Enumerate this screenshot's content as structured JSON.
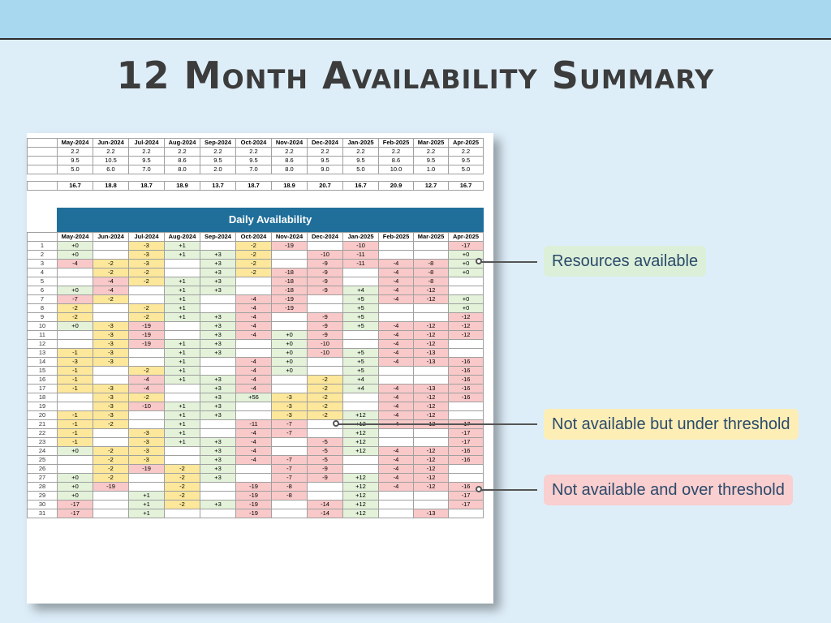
{
  "page": {
    "title": "12 Month Availability  Summary"
  },
  "months": [
    "May-2024",
    "Jun-2024",
    "Jul-2024",
    "Aug-2024",
    "Sep-2024",
    "Oct-2024",
    "Nov-2024",
    "Dec-2024",
    "Jan-2025",
    "Feb-2025",
    "Mar-2025",
    "Apr-2025"
  ],
  "summary_rows": [
    [
      "2.2",
      "2.2",
      "2.2",
      "2.2",
      "2.2",
      "2.2",
      "2.2",
      "2.2",
      "2.2",
      "2.2",
      "2.2",
      "2.2"
    ],
    [
      "9.5",
      "10.5",
      "9.5",
      "8.6",
      "9.5",
      "9.5",
      "8.6",
      "9.5",
      "9.5",
      "8.6",
      "9.5",
      "9.5"
    ],
    [
      "5.0",
      "6.0",
      "7.0",
      "8.0",
      "2.0",
      "7.0",
      "8.0",
      "9.0",
      "5.0",
      "10.0",
      "1.0",
      "5.0"
    ]
  ],
  "totals": [
    "16.7",
    "18.8",
    "18.7",
    "18.9",
    "13.7",
    "18.7",
    "18.9",
    "20.7",
    "16.7",
    "20.9",
    "12.7",
    "16.7"
  ],
  "daily": {
    "title": "Daily Availability",
    "rows": [
      [
        "+0|g",
        "",
        "-3|y",
        "+1|g",
        "",
        "-2|y",
        "-19|r",
        "",
        "-10|r",
        "",
        "",
        "-17|r"
      ],
      [
        "+0|g",
        "",
        "-3|y",
        "+1|g",
        "+3|g",
        "-2|y",
        "",
        "-10|r",
        "-11|r",
        "",
        "",
        "+0|g"
      ],
      [
        "-4|r",
        "-2|y",
        "-3|y",
        "",
        "+3|g",
        "-2|y",
        "",
        "-9|r",
        "-11|r",
        "-4|r",
        "-8|r",
        "+0|g"
      ],
      [
        "",
        "-2|y",
        "-2|y",
        "",
        "+3|g",
        "-2|y",
        "-18|r",
        "-9|r",
        "",
        "-4|r",
        "-8|r",
        "+0|g"
      ],
      [
        "",
        "-4|r",
        "-2|y",
        "+1|g",
        "+3|g",
        "",
        "-18|r",
        "-9|r",
        "",
        "-4|r",
        "-8|r",
        ""
      ],
      [
        "+0|g",
        "-4|r",
        "",
        "+1|g",
        "+3|g",
        "",
        "-18|r",
        "-9|r",
        "+4|g",
        "-4|r",
        "-12|r",
        ""
      ],
      [
        "-7|r",
        "-2|y",
        "",
        "+1|g",
        "",
        "-4|r",
        "-19|r",
        "",
        "+5|g",
        "-4|r",
        "-12|r",
        "+0|g"
      ],
      [
        "-2|y",
        "",
        "-2|y",
        "+1|g",
        "",
        "-4|r",
        "-19|r",
        "",
        "+5|g",
        "",
        "",
        "+0|g"
      ],
      [
        "-2|y",
        "",
        "-2|y",
        "+1|g",
        "+3|g",
        "-4|r",
        "",
        "-9|r",
        "+5|g",
        "",
        "",
        "-12|r"
      ],
      [
        "+0|g",
        "-3|y",
        "-19|r",
        "",
        "+3|g",
        "-4|r",
        "",
        "-9|r",
        "+5|g",
        "-4|r",
        "-12|r",
        "-12|r"
      ],
      [
        "",
        "-3|y",
        "-19|r",
        "",
        "+3|g",
        "-4|r",
        "+0|g",
        "-9|r",
        "",
        "-4|r",
        "-12|r",
        "-12|r"
      ],
      [
        "",
        "-3|y",
        "-19|r",
        "+1|g",
        "+3|g",
        "",
        "+0|g",
        "-10|r",
        "",
        "-4|r",
        "-12|r",
        ""
      ],
      [
        "-1|y",
        "-3|y",
        "",
        "+1|g",
        "+3|g",
        "",
        "+0|g",
        "-10|r",
        "+5|g",
        "-4|r",
        "-13|r",
        ""
      ],
      [
        "-3|y",
        "-3|y",
        "",
        "+1|g",
        "",
        "-4|r",
        "+0|g",
        "",
        "+5|g",
        "-4|r",
        "-13|r",
        "-16|r"
      ],
      [
        "-1|y",
        "",
        "-2|y",
        "+1|g",
        "",
        "-4|r",
        "+0|g",
        "",
        "+5|g",
        "",
        "",
        "-16|r"
      ],
      [
        "-1|y",
        "",
        "-4|r",
        "+1|g",
        "+3|g",
        "-4|r",
        "",
        "-2|y",
        "+4|g",
        "",
        "",
        "-16|r"
      ],
      [
        "-1|y",
        "-3|y",
        "-4|r",
        "",
        "+3|g",
        "-4|r",
        "",
        "-2|y",
        "+4|g",
        "-4|r",
        "-13|r",
        "-16|r"
      ],
      [
        "",
        "-3|y",
        "-2|y",
        "",
        "+3|g",
        "+56|g",
        "-3|y",
        "-2|y",
        "",
        "-4|r",
        "-12|r",
        "-16|r"
      ],
      [
        "",
        "-3|y",
        "-10|r",
        "+1|g",
        "+3|g",
        "",
        "-3|y",
        "-2|y",
        "",
        "-4|r",
        "-12|r",
        ""
      ],
      [
        "-1|y",
        "-3|y",
        "",
        "+1|g",
        "+3|g",
        "",
        "-3|y",
        "-2|y",
        "+12|g",
        "-4|r",
        "-12|r",
        ""
      ],
      [
        "-1|y",
        "-2|y",
        "",
        "+1|g",
        "",
        "-11|r",
        "-7|r",
        "",
        "+12|g",
        "-4|r",
        "-12|r",
        "-17|r"
      ],
      [
        "-1|y",
        "",
        "-3|y",
        "+1|g",
        "",
        "-4|r",
        "-7|r",
        "",
        "+12|g",
        "",
        "",
        "-17|r"
      ],
      [
        "-1|y",
        "",
        "-3|y",
        "+1|g",
        "+3|g",
        "-4|r",
        "",
        "-5|r",
        "+12|g",
        "",
        "",
        "-17|r"
      ],
      [
        "+0|g",
        "-2|y",
        "-3|y",
        "",
        "+3|g",
        "-4|r",
        "",
        "-5|r",
        "+12|g",
        "-4|r",
        "-12|r",
        "-16|r"
      ],
      [
        "",
        "-2|y",
        "-3|y",
        "",
        "+3|g",
        "-4|r",
        "-7|r",
        "-5|r",
        "",
        "-4|r",
        "-12|r",
        "-16|r"
      ],
      [
        "",
        "-2|y",
        "-19|r",
        "-2|y",
        "+3|g",
        "",
        "-7|r",
        "-9|r",
        "",
        "-4|r",
        "-12|r",
        ""
      ],
      [
        "+0|g",
        "-2|y",
        "",
        "-2|y",
        "+3|g",
        "",
        "-7|r",
        "-9|r",
        "+12|g",
        "-4|r",
        "-12|r",
        ""
      ],
      [
        "+0|g",
        "-19|r",
        "",
        "-2|y",
        "",
        "-19|r",
        "-8|r",
        "",
        "+12|g",
        "-4|r",
        "-12|r",
        "-16|r"
      ],
      [
        "+0|g",
        "",
        "+1|g",
        "-2|y",
        "",
        "-19|r",
        "-8|r",
        "",
        "+12|g",
        "",
        "",
        "-17|r"
      ],
      [
        "-17|r",
        "",
        "+1|g",
        "-2|y",
        "+3|g",
        "-19|r",
        "",
        "-14|r",
        "+12|g",
        "",
        "",
        "-17|r"
      ],
      [
        "-17|r",
        "",
        "+1|g",
        "",
        "",
        "-19|r",
        "",
        "-14|r",
        "+12|g",
        "",
        "-13|r",
        ""
      ]
    ]
  },
  "legend": {
    "available": "Resources available",
    "under_threshold": "Not available but under threshold",
    "over_threshold": "Not available and over threshold"
  },
  "colors": {
    "available": "#e3f2d9",
    "under_threshold": "#fde79a",
    "over_threshold": "#f9c8c8",
    "header_band": "#1f6f9a"
  }
}
